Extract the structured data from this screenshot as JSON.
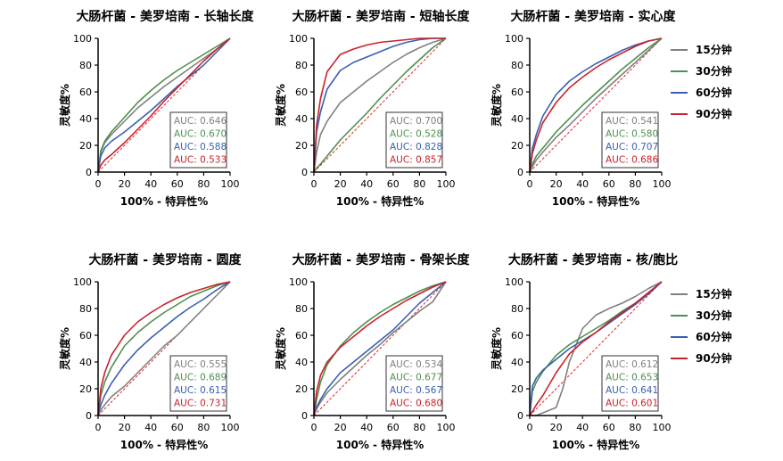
{
  "common": {
    "xlabel": "100% - 特异性%",
    "ylabel": "灵敏度%",
    "ticks": [
      "0",
      "20",
      "40",
      "60",
      "80",
      "100"
    ]
  },
  "legend": {
    "placement": "right of top and bottom rows",
    "entries": [
      {
        "name": "15分钟",
        "color": "#808080"
      },
      {
        "name": "30分钟",
        "color": "#4f8f4f"
      },
      {
        "name": "60分钟",
        "color": "#3a5fb0"
      },
      {
        "name": "90分钟",
        "color": "#c8232c"
      }
    ]
  },
  "chart_data": [
    {
      "type": "line",
      "title": "大肠杆菌 - 美罗培南 - 长轴长度",
      "xlim": [
        0,
        100
      ],
      "ylim": [
        0,
        100
      ],
      "diagonal_reference": true,
      "series": [
        {
          "name": "15分钟",
          "color": "#808080",
          "auc_label": "AUC: 0.646",
          "x": [
            0,
            2,
            5,
            10,
            20,
            30,
            40,
            50,
            60,
            70,
            80,
            90,
            100
          ],
          "y": [
            0,
            15,
            22,
            28,
            38,
            48,
            56,
            64,
            71,
            78,
            85,
            92,
            100
          ]
        },
        {
          "name": "30分钟",
          "color": "#4f8f4f",
          "auc_label": "AUC: 0.670",
          "x": [
            0,
            2,
            5,
            10,
            20,
            30,
            40,
            50,
            60,
            70,
            80,
            90,
            100
          ],
          "y": [
            0,
            16,
            23,
            30,
            41,
            52,
            61,
            69,
            76,
            82,
            88,
            94,
            100
          ]
        },
        {
          "name": "60分钟",
          "color": "#3a5fb0",
          "auc_label": "AUC: 0.588",
          "x": [
            0,
            2,
            5,
            10,
            20,
            30,
            40,
            50,
            60,
            70,
            80,
            90,
            100
          ],
          "y": [
            0,
            12,
            18,
            23,
            30,
            38,
            46,
            55,
            64,
            72,
            80,
            90,
            100
          ]
        },
        {
          "name": "90分钟",
          "color": "#c8232c",
          "auc_label": "AUC: 0.533",
          "x": [
            0,
            2,
            5,
            10,
            20,
            30,
            40,
            50,
            60,
            70,
            80,
            90,
            100
          ],
          "y": [
            0,
            5,
            9,
            13,
            22,
            32,
            42,
            53,
            63,
            73,
            83,
            92,
            100
          ]
        }
      ]
    },
    {
      "type": "line",
      "title": "大肠杆菌 - 美罗培南 - 短轴长度",
      "xlim": [
        0,
        100
      ],
      "ylim": [
        0,
        100
      ],
      "diagonal_reference": true,
      "series": [
        {
          "name": "15分钟",
          "color": "#808080",
          "auc_label": "AUC: 0.700",
          "x": [
            0,
            2,
            5,
            10,
            20,
            30,
            40,
            50,
            60,
            70,
            80,
            90,
            100
          ],
          "y": [
            0,
            15,
            28,
            38,
            52,
            60,
            68,
            75,
            82,
            88,
            93,
            97,
            100
          ]
        },
        {
          "name": "30分钟",
          "color": "#4f8f4f",
          "auc_label": "AUC: 0.528",
          "x": [
            0,
            2,
            5,
            10,
            20,
            30,
            40,
            50,
            60,
            70,
            80,
            90,
            100
          ],
          "y": [
            0,
            3,
            6,
            12,
            24,
            34,
            44,
            55,
            65,
            75,
            84,
            93,
            100
          ]
        },
        {
          "name": "60分钟",
          "color": "#3a5fb0",
          "auc_label": "AUC: 0.828",
          "x": [
            0,
            2,
            5,
            10,
            20,
            30,
            40,
            50,
            60,
            70,
            80,
            90,
            100
          ],
          "y": [
            0,
            30,
            45,
            62,
            76,
            82,
            86,
            90,
            94,
            97,
            99,
            100,
            100
          ]
        },
        {
          "name": "90分钟",
          "color": "#c8232c",
          "auc_label": "AUC: 0.857",
          "x": [
            0,
            2,
            5,
            10,
            20,
            30,
            40,
            50,
            60,
            70,
            80,
            90,
            100
          ],
          "y": [
            0,
            35,
            55,
            75,
            88,
            92,
            95,
            97,
            98,
            99,
            100,
            100,
            100
          ]
        }
      ]
    },
    {
      "type": "line",
      "title": "大肠杆菌 - 美罗培南 - 实心度",
      "xlim": [
        0,
        100
      ],
      "ylim": [
        0,
        100
      ],
      "diagonal_reference": true,
      "series": [
        {
          "name": "15分钟",
          "color": "#808080",
          "auc_label": "AUC: 0.541",
          "x": [
            0,
            2,
            5,
            10,
            20,
            30,
            40,
            50,
            60,
            70,
            80,
            90,
            100
          ],
          "y": [
            0,
            4,
            9,
            15,
            26,
            35,
            45,
            55,
            64,
            73,
            82,
            91,
            100
          ]
        },
        {
          "name": "30分钟",
          "color": "#4f8f4f",
          "auc_label": "AUC: 0.580",
          "x": [
            0,
            2,
            5,
            10,
            20,
            30,
            40,
            50,
            60,
            70,
            80,
            90,
            100
          ],
          "y": [
            0,
            6,
            12,
            18,
            30,
            40,
            50,
            59,
            68,
            77,
            85,
            93,
            100
          ]
        },
        {
          "name": "60分钟",
          "color": "#3a5fb0",
          "auc_label": "AUC: 0.707",
          "x": [
            0,
            2,
            5,
            10,
            20,
            30,
            40,
            50,
            60,
            70,
            80,
            90,
            100
          ],
          "y": [
            0,
            18,
            28,
            42,
            58,
            68,
            75,
            81,
            86,
            91,
            95,
            98,
            100
          ]
        },
        {
          "name": "90分钟",
          "color": "#c8232c",
          "auc_label": "AUC: 0.686",
          "x": [
            0,
            2,
            5,
            10,
            20,
            30,
            40,
            50,
            60,
            70,
            80,
            90,
            100
          ],
          "y": [
            0,
            14,
            24,
            37,
            52,
            63,
            71,
            78,
            84,
            89,
            94,
            98,
            100
          ]
        }
      ]
    },
    {
      "type": "line",
      "title": "大肠杆菌 - 美罗培南 - 圆度",
      "xlim": [
        0,
        100
      ],
      "ylim": [
        0,
        100
      ],
      "diagonal_reference": true,
      "series": [
        {
          "name": "15分钟",
          "color": "#808080",
          "auc_label": "AUC: 0.555",
          "x": [
            0,
            2,
            5,
            10,
            20,
            30,
            40,
            50,
            60,
            70,
            80,
            90,
            100
          ],
          "y": [
            0,
            4,
            8,
            14,
            22,
            32,
            42,
            52,
            60,
            70,
            80,
            90,
            100
          ]
        },
        {
          "name": "30分钟",
          "color": "#4f8f4f",
          "auc_label": "AUC: 0.689",
          "x": [
            0,
            2,
            5,
            10,
            20,
            30,
            40,
            50,
            60,
            70,
            80,
            90,
            100
          ],
          "y": [
            0,
            15,
            25,
            36,
            52,
            62,
            70,
            77,
            83,
            89,
            93,
            97,
            100
          ]
        },
        {
          "name": "60分钟",
          "color": "#3a5fb0",
          "auc_label": "AUC: 0.615",
          "x": [
            0,
            2,
            5,
            10,
            20,
            30,
            40,
            50,
            60,
            70,
            80,
            90,
            100
          ],
          "y": [
            0,
            8,
            15,
            24,
            38,
            49,
            58,
            66,
            74,
            81,
            87,
            94,
            100
          ]
        },
        {
          "name": "90分钟",
          "color": "#c8232c",
          "auc_label": "AUC: 0.731",
          "x": [
            0,
            2,
            5,
            10,
            20,
            30,
            40,
            50,
            60,
            70,
            80,
            90,
            100
          ],
          "y": [
            0,
            20,
            32,
            45,
            60,
            70,
            77,
            83,
            88,
            92,
            95,
            98,
            100
          ]
        }
      ]
    },
    {
      "type": "line",
      "title": "大肠杆菌 - 美罗培南 - 骨架长度",
      "xlim": [
        0,
        100
      ],
      "ylim": [
        0,
        100
      ],
      "diagonal_reference": true,
      "series": [
        {
          "name": "15分钟",
          "color": "#808080",
          "auc_label": "AUC: 0.534",
          "x": [
            0,
            2,
            5,
            10,
            20,
            30,
            40,
            50,
            60,
            70,
            80,
            90,
            100
          ],
          "y": [
            0,
            5,
            10,
            17,
            27,
            36,
            45,
            53,
            62,
            70,
            78,
            85,
            100
          ]
        },
        {
          "name": "30分钟",
          "color": "#4f8f4f",
          "auc_label": "AUC: 0.677",
          "x": [
            0,
            2,
            5,
            10,
            20,
            30,
            40,
            50,
            60,
            70,
            80,
            90,
            100
          ],
          "y": [
            0,
            12,
            25,
            38,
            52,
            62,
            70,
            77,
            83,
            88,
            93,
            97,
            100
          ]
        },
        {
          "name": "60分钟",
          "color": "#3a5fb0",
          "auc_label": "AUC: 0.567",
          "x": [
            0,
            2,
            5,
            10,
            20,
            30,
            40,
            50,
            60,
            70,
            80,
            90,
            100
          ],
          "y": [
            0,
            6,
            12,
            20,
            32,
            40,
            48,
            56,
            64,
            74,
            84,
            92,
            100
          ]
        },
        {
          "name": "90分钟",
          "color": "#c8232c",
          "auc_label": "AUC: 0.680",
          "x": [
            0,
            2,
            5,
            10,
            20,
            30,
            40,
            50,
            60,
            70,
            80,
            90,
            100
          ],
          "y": [
            0,
            18,
            30,
            40,
            51,
            59,
            67,
            74,
            80,
            86,
            91,
            96,
            100
          ]
        }
      ]
    },
    {
      "type": "line",
      "title": "大肠杆菌 - 美罗培南 - 核/胞比",
      "xlim": [
        0,
        100
      ],
      "ylim": [
        0,
        100
      ],
      "diagonal_reference": true,
      "series": [
        {
          "name": "15分钟",
          "color": "#808080",
          "auc_label": "AUC: 0.612",
          "x": [
            0,
            2,
            5,
            10,
            20,
            25,
            30,
            40,
            50,
            60,
            70,
            80,
            90,
            100
          ],
          "y": [
            0,
            0,
            0,
            2,
            6,
            20,
            40,
            65,
            75,
            80,
            84,
            89,
            95,
            100
          ]
        },
        {
          "name": "30分钟",
          "color": "#4f8f4f",
          "auc_label": "AUC: 0.653",
          "x": [
            0,
            2,
            5,
            10,
            20,
            30,
            40,
            50,
            60,
            70,
            80,
            90,
            100
          ],
          "y": [
            0,
            18,
            25,
            33,
            45,
            53,
            59,
            65,
            71,
            78,
            84,
            91,
            100
          ]
        },
        {
          "name": "60分钟",
          "color": "#3a5fb0",
          "auc_label": "AUC: 0.641",
          "x": [
            0,
            2,
            5,
            10,
            20,
            30,
            40,
            50,
            60,
            70,
            80,
            90,
            100
          ],
          "y": [
            0,
            22,
            28,
            34,
            42,
            50,
            56,
            62,
            69,
            76,
            83,
            91,
            100
          ]
        },
        {
          "name": "90分钟",
          "color": "#c8232c",
          "auc_label": "AUC: 0.601",
          "x": [
            0,
            2,
            5,
            10,
            20,
            30,
            40,
            50,
            60,
            70,
            80,
            90,
            100
          ],
          "y": [
            0,
            3,
            8,
            15,
            32,
            46,
            55,
            62,
            70,
            77,
            84,
            92,
            100
          ]
        }
      ]
    }
  ]
}
